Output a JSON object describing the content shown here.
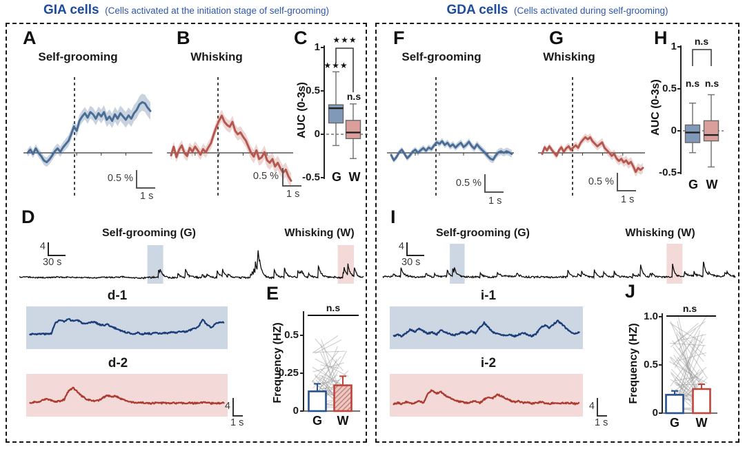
{
  "header": {
    "left_title": "GIA cells",
    "left_subtitle": "(Cells activated at the initiation stage of self-grooming)",
    "right_title": "GDA cells",
    "right_subtitle": "(Cells activated during self-grooming)"
  },
  "colors": {
    "title_blue": "#1d4ba0",
    "blue": "#4a6d96",
    "blue_band": "rgba(74,109,150,0.30)",
    "red": "#b5574f",
    "red_band": "rgba(181,87,79,0.25)",
    "navy": "#1d3e78",
    "darkred": "#ad3a30",
    "box_blue": "#8099b8",
    "box_pink": "#db9f9b",
    "hl_blue": "#ccd7e3",
    "hl_pink": "#f3d9d7",
    "bar_blue": "#27508f",
    "bar_red": "#c0443a",
    "black_trace": "#0b0b0b"
  },
  "panels": {
    "A": {
      "letter": "A",
      "title": "Self-grooming",
      "scale_amp": "0.5 %",
      "scale_time": "1 s"
    },
    "B": {
      "letter": "B",
      "title": "Whisking",
      "scale_amp": "0.5 %",
      "scale_time": "1 s"
    },
    "C": {
      "letter": "C",
      "ylabel": "AUC (0-3s)",
      "ticks": [
        "1",
        "0.5",
        "0",
        "-0.5"
      ],
      "xlabels": [
        "G",
        "W"
      ],
      "sig_g": "★★★",
      "sig_w": "n.s",
      "sig_pair": "★★★"
    },
    "D": {
      "letter": "D",
      "scale_amp": "4",
      "scale_time": "30 s",
      "region_g": "Self-grooming (G)",
      "region_w": "Whisking (W)"
    },
    "d1": {
      "title": "d-1"
    },
    "d2": {
      "title": "d-2",
      "scale_amp": "4",
      "scale_time": "1 s"
    },
    "E": {
      "letter": "E",
      "ylabel": "Frequency (HZ)",
      "ticks": [
        "0.5",
        "0.25",
        "0"
      ],
      "xlabels": [
        "G",
        "W"
      ],
      "sig": "n.s"
    },
    "F": {
      "letter": "F",
      "title": "Self-grooming",
      "scale_amp": "0.5 %",
      "scale_time": "1 s"
    },
    "G": {
      "letter": "G",
      "title": "Whisking",
      "scale_amp": "0.5 %",
      "scale_time": "1 s"
    },
    "H": {
      "letter": "H",
      "ylabel": "AUC (0-3s)",
      "ticks": [
        "1",
        "0.5",
        "0",
        "-0.5"
      ],
      "xlabels": [
        "G",
        "W"
      ],
      "sig_g": "n.s",
      "sig_w": "n.s",
      "sig_pair": "n.s"
    },
    "I": {
      "letter": "I",
      "scale_amp": "4",
      "scale_time": "30 s",
      "region_g": "Self-grooming (G)",
      "region_w": "Whisking (W)"
    },
    "i1": {
      "title": "i-1"
    },
    "i2": {
      "title": "i-2",
      "scale_amp": "4",
      "scale_time": "1 s"
    },
    "J": {
      "letter": "J",
      "ylabel": "Frequency (HZ)",
      "ticks": [
        "1.0",
        "0.5",
        "0"
      ],
      "xlabels": [
        "G",
        "W"
      ],
      "sig": "n.s"
    }
  },
  "chart_data": [
    {
      "id": "A",
      "type": "line",
      "title": "Self-grooming",
      "group": "GIA",
      "color_key": "blue",
      "onset_frac": 0.33,
      "unit": "dF/F %",
      "band": [
        0.07,
        0.16
      ],
      "values": [
        0,
        0.06,
        -0.02,
        0.08,
        0,
        -0.06,
        -0.14,
        -0.17,
        -0.12,
        -0.05,
        0.03,
        0.08,
        0.02,
        0.1,
        0.16,
        0.22,
        0.34,
        0.48,
        0.4,
        0.58,
        0.66,
        0.72,
        0.64,
        0.74,
        0.7,
        0.62,
        0.72,
        0.66,
        0.74,
        0.6,
        0.66,
        0.58,
        0.7,
        0.62,
        0.72,
        0.66,
        0.6,
        0.68,
        0.62,
        0.72,
        0.78,
        0.88,
        0.92,
        0.9,
        0.82,
        0.76
      ]
    },
    {
      "id": "B",
      "type": "line",
      "title": "Whisking",
      "group": "GIA",
      "color_key": "red",
      "onset_frac": 0.33,
      "unit": "dF/F %",
      "band": [
        0.08,
        0.12
      ],
      "values": [
        -0.04,
        0.1,
        -0.07,
        0.05,
        0.12,
        0,
        -0.05,
        0.08,
        0.02,
        0.1,
        0.04,
        -0.03,
        0.06,
        0.01,
        0.09,
        0.16,
        0.3,
        0.42,
        0.52,
        0.6,
        0.5,
        0.45,
        0.42,
        0.5,
        0.36,
        0.3,
        0.33,
        0.26,
        0.2,
        0.1,
        0,
        -0.06,
        0.04,
        -0.1,
        -0.07,
        0.01,
        -0.12,
        -0.16,
        -0.1,
        -0.22,
        -0.16,
        -0.25,
        -0.32,
        -0.27,
        -0.38,
        -0.45
      ]
    },
    {
      "id": "F",
      "type": "line",
      "title": "Self-grooming",
      "group": "GDA",
      "color_key": "blue",
      "onset_frac": 0.33,
      "unit": "dF/F %",
      "band": [
        0.05,
        0.07
      ],
      "values": [
        -0.04,
        -0.14,
        -0.08,
        0.01,
        0.06,
        -0.02,
        -0.1,
        -0.05,
        0.02,
        0.06,
        0,
        0.05,
        0.09,
        0.04,
        0.1,
        0.07,
        0.14,
        0.2,
        0.17,
        0.22,
        0.15,
        0.19,
        0.12,
        0.16,
        0.1,
        0.15,
        0.19,
        0.11,
        0.15,
        0.21,
        0.13,
        0.08,
        0.16,
        0.1,
        0.05,
        0,
        -0.06,
        -0.11,
        -0.13,
        -0.05,
        0.01,
        0.03,
        0,
        0.03,
        0.01,
        -0.02
      ]
    },
    {
      "id": "G",
      "type": "line",
      "title": "Whisking",
      "group": "GDA",
      "color_key": "red",
      "onset_frac": 0.3,
      "unit": "dF/F %",
      "band": [
        0.06,
        0.1
      ],
      "values": [
        -0.02,
        0.11,
        0.05,
        0.13,
        0.06,
        0,
        -0.06,
        0.05,
        0.11,
        0.02,
        0.09,
        0.13,
        0.06,
        0.11,
        0.15,
        0.1,
        0.2,
        0.26,
        0.31,
        0.27,
        0.31,
        0.23,
        0.18,
        0.13,
        0.17,
        0.21,
        0.1,
        0.05,
        0,
        -0.06,
        -0.02,
        -0.11,
        -0.16,
        -0.12,
        -0.19,
        -0.15,
        -0.22,
        -0.18,
        -0.27,
        -0.38,
        -0.3,
        -0.34,
        -0.3
      ]
    },
    {
      "id": "C",
      "type": "box",
      "ylabel": "AUC (0-3s)",
      "ylim": [
        -0.5,
        1
      ],
      "tick_vals": [
        1,
        0.5,
        0,
        -0.5
      ],
      "categories": [
        "G",
        "W"
      ],
      "boxes": [
        {
          "median": 0.3,
          "q1": 0.13,
          "q3": 0.34,
          "lo": -0.13,
          "hi": 0.72
        },
        {
          "median": 0.02,
          "q1": -0.05,
          "q3": 0.16,
          "lo": -0.28,
          "hi": 0.35
        }
      ],
      "sig": [
        "★★★",
        "n.s"
      ],
      "pair_sig": "★★★"
    },
    {
      "id": "H",
      "type": "box",
      "ylabel": "AUC (0-3s)",
      "ylim": [
        -0.5,
        1
      ],
      "tick_vals": [
        1,
        0.5,
        0,
        -0.5
      ],
      "categories": [
        "G",
        "W"
      ],
      "boxes": [
        {
          "median": -0.02,
          "q1": -0.14,
          "q3": 0.07,
          "lo": -0.26,
          "hi": 0.33
        },
        {
          "median": -0.05,
          "q1": -0.12,
          "q3": 0.12,
          "lo": -0.43,
          "hi": 0.43
        }
      ],
      "sig": [
        "n.s",
        "n.s"
      ],
      "pair_sig": "n.s"
    },
    {
      "id": "D",
      "type": "raw",
      "seed": 13,
      "quiet_until": 0.36,
      "spike_prob": 0.05,
      "amp": 30,
      "regions": [
        {
          "label": "Self-grooming (G)",
          "x0": 0.372,
          "x1": 0.418
        },
        {
          "label": "Whisking (W)",
          "x0": 0.925,
          "x1": 0.972
        }
      ]
    },
    {
      "id": "I",
      "type": "raw",
      "seed": 21,
      "quiet_until": 0,
      "spike_prob": 0.05,
      "amp": 24,
      "regions": [
        {
          "label": "Self-grooming (G)",
          "x0": 0.19,
          "x1": 0.232
        },
        {
          "label": "Whisking (W)",
          "x0": 0.805,
          "x1": 0.85
        }
      ]
    },
    {
      "id": "d1",
      "type": "subline",
      "color_key": "navy",
      "seed": 3,
      "values": [
        0.35,
        0.36,
        0.35,
        0.36,
        0.35,
        0.37,
        0.62,
        0.68,
        0.64,
        0.7,
        0.66,
        0.68,
        0.62,
        0.58,
        0.62,
        0.64,
        0.58,
        0.56,
        0.58,
        0.52,
        0.48,
        0.44,
        0.4,
        0.38,
        0.36,
        0.38,
        0.35,
        0.37,
        0.36,
        0.38,
        0.36,
        0.38,
        0.37,
        0.4,
        0.38,
        0.42,
        0.4,
        0.44,
        0.48,
        0.52,
        0.68,
        0.58,
        0.5,
        0.6,
        0.64,
        0.62
      ]
    },
    {
      "id": "d2",
      "type": "subline",
      "color_key": "darkred",
      "seed": 4,
      "values": [
        0.32,
        0.34,
        0.33,
        0.38,
        0.42,
        0.38,
        0.35,
        0.36,
        0.4,
        0.6,
        0.68,
        0.58,
        0.48,
        0.42,
        0.38,
        0.36,
        0.38,
        0.44,
        0.5,
        0.46,
        0.48,
        0.42,
        0.38,
        0.35,
        0.33,
        0.32,
        0.33,
        0.32,
        0.31,
        0.32,
        0.31,
        0.32,
        0.31,
        0.32,
        0.31,
        0.32,
        0.31,
        0.32,
        0.31,
        0.32,
        0.33,
        0.32,
        0.31,
        0.32,
        0.31,
        0.32
      ]
    },
    {
      "id": "i1",
      "type": "subline",
      "color_key": "navy",
      "seed": 5,
      "values": [
        0.3,
        0.34,
        0.3,
        0.38,
        0.46,
        0.4,
        0.48,
        0.42,
        0.36,
        0.4,
        0.34,
        0.44,
        0.4,
        0.36,
        0.32,
        0.36,
        0.4,
        0.36,
        0.42,
        0.38,
        0.5,
        0.62,
        0.5,
        0.4,
        0.36,
        0.34,
        0.32,
        0.34,
        0.3,
        0.34,
        0.38,
        0.34,
        0.3,
        0.36,
        0.5,
        0.56,
        0.5,
        0.58,
        0.66,
        0.58,
        0.48,
        0.4,
        0.36,
        0.4
      ]
    },
    {
      "id": "i2",
      "type": "subline",
      "color_key": "darkred",
      "seed": 6,
      "values": [
        0.3,
        0.32,
        0.3,
        0.34,
        0.3,
        0.32,
        0.36,
        0.32,
        0.55,
        0.62,
        0.54,
        0.58,
        0.5,
        0.44,
        0.4,
        0.36,
        0.34,
        0.32,
        0.34,
        0.36,
        0.32,
        0.4,
        0.46,
        0.42,
        0.52,
        0.48,
        0.42,
        0.38,
        0.34,
        0.36,
        0.32,
        0.34,
        0.3,
        0.32,
        0.34,
        0.32,
        0.3,
        0.32,
        0.3,
        0.32,
        0.31,
        0.32,
        0.3,
        0.31
      ]
    },
    {
      "id": "E",
      "type": "bar",
      "ylabel": "Frequency (HZ)",
      "categories": [
        "G",
        "W"
      ],
      "values": [
        0.13,
        0.17
      ],
      "errors": [
        0.05,
        0.06
      ],
      "tick_vals": [
        0.5,
        0.25,
        0
      ],
      "ylim": [
        0,
        0.62
      ],
      "sig": "n.s",
      "n_pairs": 42,
      "pair_max": 0.5,
      "seed": 5
    },
    {
      "id": "J",
      "type": "bar",
      "ylabel": "Frequency (HZ)",
      "categories": [
        "G",
        "W"
      ],
      "values": [
        0.19,
        0.25
      ],
      "errors": [
        0.04,
        0.05
      ],
      "tick_vals": [
        1,
        0.5,
        0
      ],
      "ylim": [
        0,
        1.05
      ],
      "sig": "n.s",
      "n_pairs": 55,
      "pair_max": 0.95,
      "seed": 9
    }
  ]
}
